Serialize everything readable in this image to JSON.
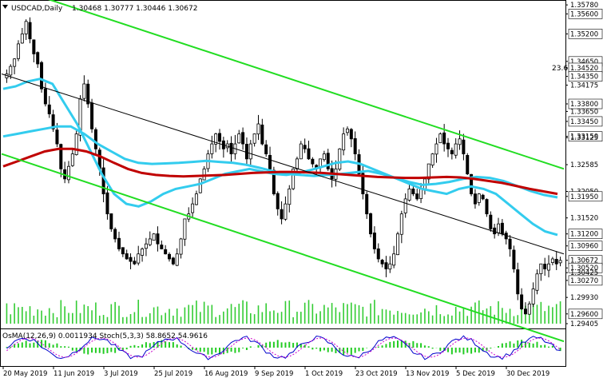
{
  "window": {
    "symbol": "USDCAD,Daily",
    "ohlc": "1.30468 1.30777 1.30446 1.30672"
  },
  "oscillator_header": "OsMA(12,26,9) 0.0011934  Stoch(5,3,3) 58.8652 54.9616",
  "fib_label": "23.6",
  "colors": {
    "bull": "#000000",
    "bear": "#000000",
    "ema_red": "#c00000",
    "ema_cyan": "#33ccee",
    "channel": "#22dd22",
    "dashed_channel": "#000000",
    "volume": "#33cc33",
    "label_bg": "#ffffff"
  },
  "chart_data": {
    "type": "line",
    "ylim": [
      1.29405,
      1.3583
    ],
    "price_labels": [
      "1.35780",
      "1.35600",
      "1.35200",
      "1.34650",
      "1.34520",
      "1.34350",
      "1.34175",
      "1.33800",
      "1.33650",
      "1.33450",
      "1.33150",
      "1.33125",
      "1.32585",
      "1.32050",
      "1.31950",
      "1.31520",
      "1.31200",
      "1.30960",
      "1.30672",
      "1.30520",
      "1.30425",
      "1.30270",
      "1.29930",
      "1.29600",
      "1.29405"
    ],
    "highlighted_levels": [
      1.356,
      1.352,
      1.3465,
      1.3452,
      1.3435,
      1.338,
      1.3345,
      1.3315,
      1.3195,
      1.312,
      1.3096,
      1.3067,
      1.3052,
      1.3027,
      1.296
    ],
    "x_labels": [
      "20 May 2019",
      "11 Jun 2019",
      "3 Jul 2019",
      "25 Jul 2019",
      "16 Aug 2019",
      "9 Sep 2019",
      "1 Oct 2019",
      "23 Oct 2019",
      "13 Nov 2019",
      "5 Dec 2019",
      "30 Dec 2019"
    ],
    "close_series": [
      1.344,
      1.3455,
      1.347,
      1.35,
      1.352,
      1.3545,
      1.351,
      1.348,
      1.346,
      1.341,
      1.338,
      1.336,
      1.333,
      1.33,
      1.325,
      1.323,
      1.3255,
      1.328,
      1.332,
      1.339,
      1.342,
      1.338,
      1.333,
      1.329,
      1.325,
      1.32,
      1.316,
      1.313,
      1.311,
      1.309,
      1.308,
      1.307,
      1.3065,
      1.306,
      1.308,
      1.309,
      1.31,
      1.311,
      1.312,
      1.31,
      1.309,
      1.308,
      1.307,
      1.306,
      1.308,
      1.311,
      1.315,
      1.316,
      1.318,
      1.32,
      1.323,
      1.325,
      1.328,
      1.33,
      1.332,
      1.3305,
      1.329,
      1.33,
      1.328,
      1.33,
      1.332,
      1.33,
      1.327,
      1.33,
      1.332,
      1.334,
      1.33,
      1.328,
      1.325,
      1.32,
      1.317,
      1.315,
      1.318,
      1.321,
      1.325,
      1.327,
      1.33,
      1.329,
      1.327,
      1.326,
      1.325,
      1.327,
      1.328,
      1.325,
      1.323,
      1.325,
      1.329,
      1.332,
      1.333,
      1.331,
      1.328,
      1.324,
      1.32,
      1.316,
      1.312,
      1.309,
      1.307,
      1.306,
      1.305,
      1.306,
      1.308,
      1.312,
      1.316,
      1.319,
      1.321,
      1.32,
      1.319,
      1.321,
      1.323,
      1.326,
      1.328,
      1.33,
      1.332,
      1.33,
      1.329,
      1.328,
      1.33,
      1.331,
      1.328,
      1.324,
      1.32,
      1.318,
      1.32,
      1.319,
      1.316,
      1.313,
      1.312,
      1.314,
      1.312,
      1.311,
      1.309,
      1.305,
      1.3,
      1.297,
      1.296,
      1.298,
      1.301,
      1.304,
      1.306,
      1.305,
      1.306,
      1.307,
      1.306,
      1.3067
    ],
    "ema_cyan_fast": [
      1.341,
      1.3415,
      1.3425,
      1.343,
      1.342,
      1.338,
      1.334,
      1.329,
      1.324,
      1.32,
      1.318,
      1.3175,
      1.3185,
      1.32,
      1.321,
      1.3215,
      1.322,
      1.323,
      1.324,
      1.3245,
      1.325,
      1.3245,
      1.324,
      1.3238,
      1.3242,
      1.3248,
      1.3255,
      1.3262,
      1.3265,
      1.326,
      1.325,
      1.324,
      1.323,
      1.322,
      1.321,
      1.3205,
      1.32,
      1.321,
      1.3215,
      1.321,
      1.32,
      1.318,
      1.316,
      1.314,
      1.3125,
      1.3118
    ],
    "ema_cyan_slow": [
      1.3315,
      1.332,
      1.3325,
      1.333,
      1.3335,
      1.3335,
      1.332,
      1.33,
      1.3285,
      1.327,
      1.3262,
      1.326,
      1.3261,
      1.3262,
      1.3264,
      1.3266,
      1.3264,
      1.3262,
      1.3258,
      1.3252,
      1.3245,
      1.324,
      1.3238,
      1.3236,
      1.3238,
      1.324,
      1.3243,
      1.3246,
      1.324,
      1.3232,
      1.3224,
      1.3218,
      1.322,
      1.3224,
      1.323,
      1.3234,
      1.3232,
      1.3226,
      1.3216,
      1.3206,
      1.3198,
      1.3193
    ],
    "ema_red": [
      1.3255,
      1.3265,
      1.3275,
      1.3285,
      1.329,
      1.329,
      1.3285,
      1.3275,
      1.3262,
      1.325,
      1.3242,
      1.3238,
      1.3236,
      1.3235,
      1.3236,
      1.3237,
      1.3238,
      1.324,
      1.3242,
      1.3243,
      1.3244,
      1.3244,
      1.3243,
      1.3242,
      1.324,
      1.3238,
      1.3236,
      1.3234,
      1.3233,
      1.3232,
      1.3232,
      1.3233,
      1.3234,
      1.3233,
      1.323,
      1.3226,
      1.3222,
      1.3216,
      1.321,
      1.3205,
      1.32
    ]
  }
}
